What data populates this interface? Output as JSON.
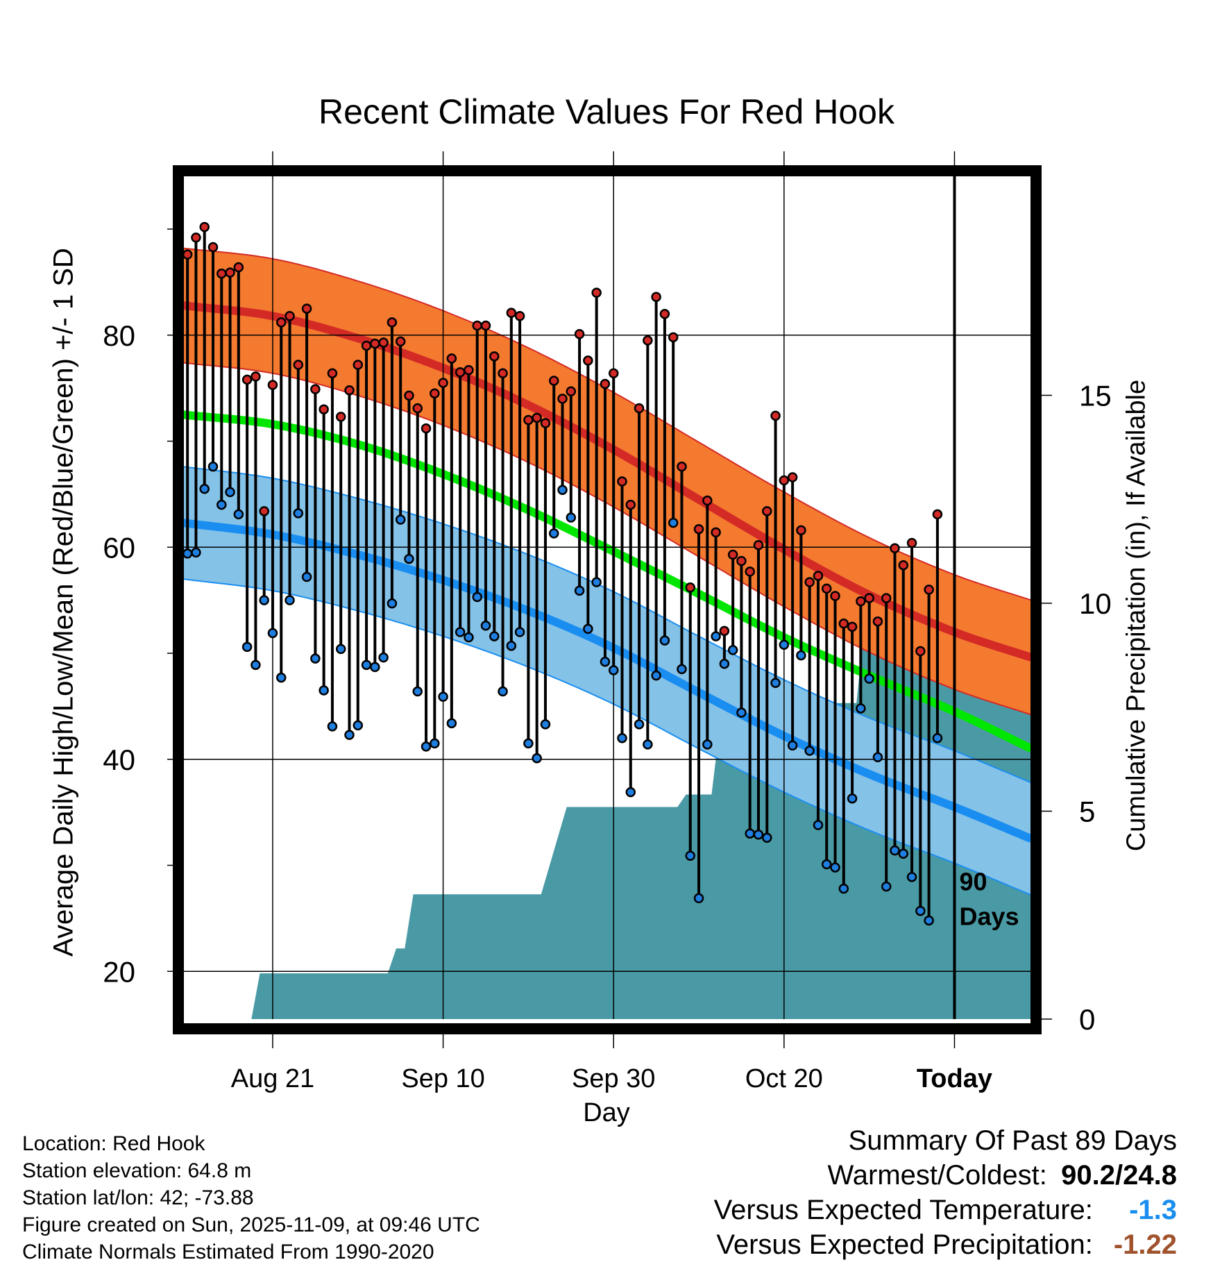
{
  "chart_data": {
    "type": "line",
    "title": "Recent Climate Values For Red Hook",
    "xlabel": "Day",
    "ylabel": "Average Daily High/Low/Mean (Red/Blue/Green) +/- 1 SD",
    "y2label": "Cumulative Precipitation (in), If Available",
    "ylim": [
      15.5,
      95.5
    ],
    "y_ticks": [
      "20",
      "40",
      "60",
      "80"
    ],
    "y2lim": [
      0,
      20.4
    ],
    "y2_ticks": [
      "0",
      "5",
      "10",
      "15"
    ],
    "x_range_days": [
      -90.5,
      9
    ],
    "x_ticks": [
      {
        "label": "Aug 21",
        "day": -80
      },
      {
        "label": "Sep 10",
        "day": -60
      },
      {
        "label": "Sep 30",
        "day": -40
      },
      {
        "label": "Oct 20",
        "day": -20
      },
      {
        "label": "Today",
        "day": 0
      }
    ],
    "today_marker": "90 Days",
    "normal_high_mean": [
      {
        "day": -90.5,
        "value": 82.8
      },
      {
        "day": -80,
        "value": 81.8
      },
      {
        "day": -70,
        "value": 79.7
      },
      {
        "day": -60,
        "value": 76.9
      },
      {
        "day": -50,
        "value": 73.4
      },
      {
        "day": -40,
        "value": 69.2
      },
      {
        "day": -30,
        "value": 64.5
      },
      {
        "day": -20,
        "value": 59.8
      },
      {
        "day": -10,
        "value": 55.5
      },
      {
        "day": 0,
        "value": 52.0
      },
      {
        "day": 9,
        "value": 49.6
      }
    ],
    "normal_high_sd": 5.4,
    "normal_mean": [
      {
        "day": -90.5,
        "value": 72.5
      },
      {
        "day": -80,
        "value": 71.6
      },
      {
        "day": -70,
        "value": 69.7
      },
      {
        "day": -60,
        "value": 66.9
      },
      {
        "day": -50,
        "value": 63.5
      },
      {
        "day": -40,
        "value": 59.6
      },
      {
        "day": -30,
        "value": 55.6
      },
      {
        "day": -20,
        "value": 51.5
      },
      {
        "day": -10,
        "value": 47.9
      },
      {
        "day": 0,
        "value": 44.5
      },
      {
        "day": 9,
        "value": 41.0
      }
    ],
    "normal_low_mean": [
      {
        "day": -90.5,
        "value": 62.3
      },
      {
        "day": -80,
        "value": 61.2
      },
      {
        "day": -70,
        "value": 59.3
      },
      {
        "day": -60,
        "value": 56.9
      },
      {
        "day": -50,
        "value": 54.0
      },
      {
        "day": -40,
        "value": 50.5
      },
      {
        "day": -30,
        "value": 46.3
      },
      {
        "day": -20,
        "value": 42.2
      },
      {
        "day": -10,
        "value": 38.6
      },
      {
        "day": 0,
        "value": 35.5
      },
      {
        "day": 9,
        "value": 32.5
      }
    ],
    "normal_low_sd": 5.3,
    "daily_high": [
      87.6,
      89.2,
      90.2,
      88.3,
      85.8,
      85.9,
      86.4,
      75.8,
      76.1,
      63.4,
      75.3,
      81.2,
      81.8,
      77.2,
      82.5,
      74.9,
      73.0,
      76.4,
      72.3,
      74.8,
      77.2,
      79.0,
      79.2,
      79.3,
      81.2,
      79.4,
      74.3,
      73.1,
      71.2,
      74.5,
      75.5,
      77.8,
      76.5,
      76.7,
      80.9,
      80.9,
      78.0,
      76.4,
      82.1,
      81.8,
      72.0,
      72.2,
      71.7,
      75.7,
      74.0,
      74.7,
      80.1,
      77.6,
      84.0,
      75.4,
      76.4,
      66.2,
      64.0,
      73.1,
      79.5,
      83.6,
      82.0,
      79.8,
      67.6,
      56.2,
      61.7,
      64.4,
      61.4,
      52.1,
      59.3,
      58.7,
      57.7,
      60.2,
      63.4,
      72.4,
      66.3,
      66.6,
      61.6,
      56.7,
      57.3,
      56.1,
      55.4,
      52.8,
      52.5,
      54.9,
      55.2,
      53.0,
      55.2,
      59.9,
      58.3,
      60.4,
      50.2,
      56.0,
      63.1
    ],
    "daily_low": [
      59.4,
      59.5,
      65.5,
      67.6,
      64.0,
      65.2,
      63.1,
      50.6,
      48.9,
      55.0,
      51.9,
      47.7,
      55.0,
      63.2,
      57.2,
      49.5,
      46.5,
      43.1,
      50.4,
      42.3,
      43.2,
      48.9,
      48.7,
      49.6,
      54.7,
      62.6,
      58.9,
      46.4,
      41.2,
      41.5,
      45.9,
      43.4,
      52.0,
      51.5,
      55.3,
      52.6,
      51.6,
      46.4,
      50.7,
      52.0,
      41.5,
      40.1,
      43.3,
      61.3,
      65.4,
      62.8,
      55.9,
      52.3,
      56.7,
      49.2,
      48.4,
      42.0,
      36.9,
      43.3,
      41.4,
      47.9,
      51.2,
      62.3,
      48.5,
      30.9,
      26.9,
      41.4,
      51.6,
      49.0,
      50.3,
      44.4,
      33.0,
      32.9,
      32.6,
      47.2,
      50.8,
      41.3,
      49.8,
      40.8,
      33.8,
      30.1,
      29.8,
      27.8,
      36.3,
      44.8,
      47.6,
      40.2,
      28.0,
      31.4,
      31.1,
      28.9,
      25.7,
      24.8,
      42.0
    ],
    "cumulative_precip": [
      {
        "day": -90.5,
        "value": 0
      },
      {
        "day": -82.5,
        "value": 0
      },
      {
        "day": -81.5,
        "value": 1.1
      },
      {
        "day": -66.5,
        "value": 1.1
      },
      {
        "day": -65.5,
        "value": 1.7
      },
      {
        "day": -64.5,
        "value": 1.7
      },
      {
        "day": -63.5,
        "value": 3.0
      },
      {
        "day": -48.5,
        "value": 3.0
      },
      {
        "day": -47.5,
        "value": 3.7
      },
      {
        "day": -46.5,
        "value": 4.4
      },
      {
        "day": -45.5,
        "value": 5.1
      },
      {
        "day": -32.5,
        "value": 5.1
      },
      {
        "day": -31.5,
        "value": 5.4
      },
      {
        "day": -28.5,
        "value": 5.4
      },
      {
        "day": -27.5,
        "value": 7.1
      },
      {
        "day": -20.5,
        "value": 7.1
      },
      {
        "day": -18.5,
        "value": 7.6
      },
      {
        "day": -11.5,
        "value": 7.6
      },
      {
        "day": -10.5,
        "value": 9.6
      },
      {
        "day": -9.5,
        "value": 10.0
      },
      {
        "day": 9,
        "value": 10.0
      }
    ]
  },
  "footer": {
    "location": "Location: Red Hook",
    "elevation": "Station elevation: 64.8 m",
    "latlon": "Station lat/lon: 42; -73.88",
    "created": "Figure created on Sun, 2025-11-09, at 09:46 UTC",
    "normals": "Climate Normals Estimated From 1990-2020"
  },
  "summary": {
    "title": "Summary Of Past 89 Days",
    "extremes_label": "Warmest/Coldest:",
    "extremes_value": "90.2/24.8",
    "temp_label": "Versus Expected Temperature:",
    "temp_value": "-1.3",
    "precip_label": "Versus Expected Precipitation:",
    "precip_value": "-1.22"
  },
  "colors": {
    "high_band": "#f47a30",
    "high_line": "#d42a26",
    "low_band": "#85c2e8",
    "low_line": "#1a8ef0",
    "mean_line": "#00e600",
    "precip": "#4a9aa5",
    "high_dot": "#d42a26",
    "low_dot": "#1f7fe0",
    "temp_delta": "#1a8ef0",
    "precip_delta": "#a0522d"
  }
}
